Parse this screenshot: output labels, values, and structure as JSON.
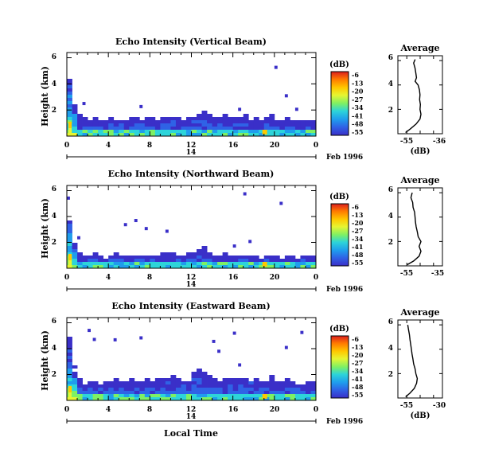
{
  "chart_data": {
    "type": "heatmap",
    "panels": [
      {
        "title": "Echo Intensity (Vertical Beam)",
        "ylabel": "Height (km)",
        "yticks": [
          "6",
          "4",
          "2"
        ],
        "ylim_km": [
          0,
          6.4
        ],
        "xticks": [
          "0",
          "4",
          "8",
          "12",
          "16",
          "20",
          "0"
        ],
        "date_label": "Feb 1996",
        "day_label": "14",
        "colorbar_unit": "(dB)",
        "colorbar_ticks": [
          "-6",
          "-13",
          "-20",
          "-27",
          "-34",
          "-41",
          "-48",
          "-55"
        ],
        "profile_title": "Average",
        "profile_yticks": [
          "6",
          "4",
          "2"
        ],
        "profile_xticks": [
          "-55",
          "-36"
        ],
        "profile_xlabel": "(dB)",
        "profile_xlim": [
          -55,
          -36
        ],
        "profile": [
          [
            -53.5,
            0.1
          ],
          [
            -51,
            0.4
          ],
          [
            -48,
            0.8
          ],
          [
            -46,
            1.2
          ],
          [
            -45.5,
            1.6
          ],
          [
            -46,
            2.0
          ],
          [
            -45.8,
            2.4
          ],
          [
            -46.2,
            2.8
          ],
          [
            -46,
            3.2
          ],
          [
            -46.3,
            3.6
          ],
          [
            -47,
            4.0
          ],
          [
            -48.5,
            4.3
          ],
          [
            -47.8,
            4.6
          ],
          [
            -48.2,
            5.0
          ],
          [
            -48.6,
            5.4
          ],
          [
            -49.3,
            5.8
          ],
          [
            -48.5,
            6.1
          ]
        ],
        "surface_km": [
          4.6,
          2.4,
          1.5,
          1.3,
          1.2,
          1.3,
          1.1,
          1.2,
          1.3,
          1.1,
          1.4,
          1.2,
          1.3,
          1.5,
          1.2,
          1.4,
          1.3,
          1.2,
          1.5,
          1.4,
          1.6,
          1.3,
          1.2,
          1.4,
          1.5,
          1.6,
          1.8,
          1.5,
          1.4,
          1.3,
          1.5,
          1.7,
          1.4,
          1.3,
          1.5,
          1.4,
          1.3,
          1.2,
          1.4,
          1.5,
          1.3,
          1.2,
          1.4,
          1.3,
          1.2,
          1.1,
          1.3,
          1.2
        ]
      },
      {
        "title": "Echo Intensity (Northward Beam)",
        "ylabel": "Height (km)",
        "yticks": [
          "6",
          "4",
          "2"
        ],
        "ylim_km": [
          0,
          6.4
        ],
        "xticks": [
          "0",
          "4",
          "8",
          "12",
          "16",
          "20",
          "0"
        ],
        "date_label": "Feb 1996",
        "day_label": "14",
        "colorbar_unit": "(dB)",
        "colorbar_ticks": [
          "-6",
          "-13",
          "-20",
          "-27",
          "-34",
          "-41",
          "-48",
          "-55"
        ],
        "profile_title": "Average",
        "profile_yticks": [
          "6",
          "4",
          "2"
        ],
        "profile_xticks": [
          "-55",
          "-35"
        ],
        "profile_xlabel": "(dB)",
        "profile_xlim": [
          -55,
          -35
        ],
        "profile": [
          [
            -52.5,
            0.1
          ],
          [
            -49,
            0.4
          ],
          [
            -46,
            0.8
          ],
          [
            -45,
            1.2
          ],
          [
            -46,
            1.6
          ],
          [
            -45,
            2.0
          ],
          [
            -46.5,
            2.4
          ],
          [
            -47,
            2.8
          ],
          [
            -47.6,
            3.2
          ],
          [
            -48,
            3.6
          ],
          [
            -48.2,
            4.0
          ],
          [
            -48.5,
            4.4
          ],
          [
            -49.3,
            4.8
          ],
          [
            -49.5,
            5.2
          ],
          [
            -50.5,
            5.6
          ],
          [
            -49.8,
            6.0
          ]
        ],
        "surface_km": [
          4.2,
          1.8,
          1.0,
          0.9,
          0.8,
          1.0,
          0.9,
          0.7,
          0.8,
          1.0,
          0.9,
          0.8,
          0.9,
          1.1,
          1.0,
          0.9,
          1.0,
          0.8,
          1.1,
          1.2,
          1.0,
          0.9,
          0.8,
          1.0,
          1.2,
          1.4,
          1.6,
          1.2,
          1.0,
          0.9,
          1.1,
          1.0,
          0.9,
          0.8,
          1.0,
          0.9,
          0.8,
          0.7,
          0.9,
          1.0,
          0.8,
          0.7,
          0.9,
          0.8,
          0.7,
          0.8,
          0.9,
          0.8
        ]
      },
      {
        "title": "Echo Intensity (Eastward Beam)",
        "ylabel": "Height (km)",
        "yticks": [
          "6",
          "4",
          "2"
        ],
        "ylim_km": [
          0,
          6.4
        ],
        "xticks": [
          "0",
          "4",
          "8",
          "12",
          "16",
          "20",
          "0"
        ],
        "date_label": "Feb 1996",
        "day_label": "14",
        "colorbar_unit": "(dB)",
        "colorbar_ticks": [
          "-6",
          "-13",
          "-20",
          "-27",
          "-34",
          "-41",
          "-48",
          "-55"
        ],
        "profile_title": "Average",
        "profile_yticks": [
          "6",
          "4",
          "2"
        ],
        "profile_xticks": [
          "-55",
          "-30"
        ],
        "profile_xlabel": "(dB)",
        "profile_xlim": [
          -55,
          -30
        ],
        "profile": [
          [
            -53,
            0.1
          ],
          [
            -50,
            0.4
          ],
          [
            -47,
            0.8
          ],
          [
            -45.5,
            1.2
          ],
          [
            -45,
            1.6
          ],
          [
            -46,
            2.0
          ],
          [
            -46.5,
            2.4
          ],
          [
            -47.5,
            2.8
          ],
          [
            -48,
            3.2
          ],
          [
            -48.6,
            3.6
          ],
          [
            -49,
            4.0
          ],
          [
            -49.5,
            4.4
          ],
          [
            -50,
            4.8
          ],
          [
            -50.4,
            5.2
          ],
          [
            -51,
            5.6
          ],
          [
            -51.5,
            6.0
          ]
        ],
        "surface_km": [
          4.8,
          2.6,
          1.6,
          1.4,
          1.3,
          1.4,
          1.2,
          1.3,
          1.4,
          1.5,
          1.3,
          1.4,
          1.6,
          1.5,
          1.4,
          1.6,
          1.7,
          1.5,
          1.8,
          2.0,
          1.8,
          1.6,
          1.5,
          1.7,
          2.2,
          2.4,
          2.0,
          1.8,
          1.6,
          1.5,
          1.7,
          1.9,
          1.6,
          1.5,
          1.6,
          1.7,
          1.5,
          1.4,
          1.6,
          1.8,
          1.6,
          1.4,
          1.5,
          1.4,
          1.3,
          1.2,
          1.4,
          1.3
        ]
      }
    ],
    "xlabel": "Local Time"
  },
  "colors": {
    "colorbar": [
      "#dc1e1e",
      "#ff7a00",
      "#ffc800",
      "#e6f532",
      "#7ef064",
      "#2dd4d9",
      "#1f9ded",
      "#2f62e6",
      "#3a2fc8"
    ]
  }
}
